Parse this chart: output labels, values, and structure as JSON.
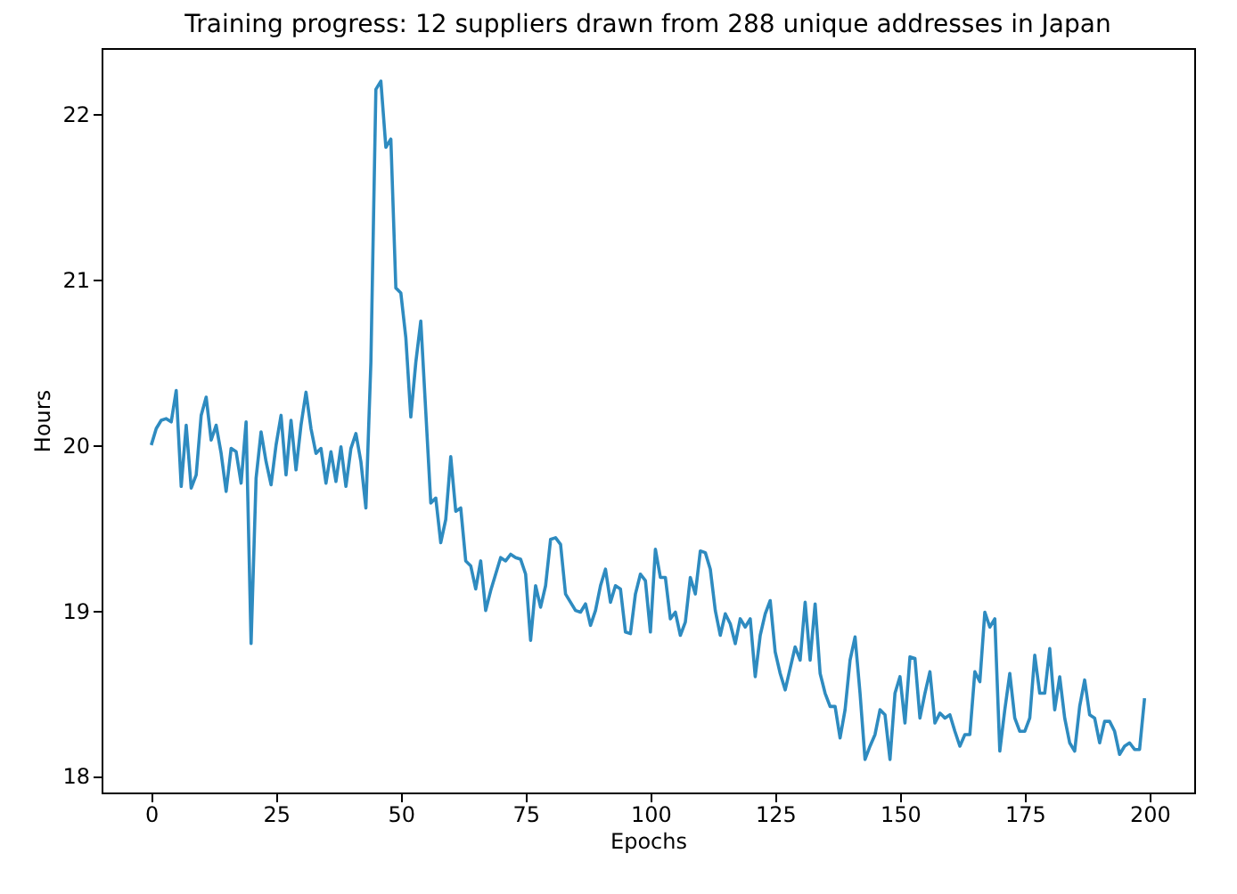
{
  "chart_data": {
    "type": "line",
    "title": "Training progress: 12 suppliers drawn from 288 unique addresses in Japan",
    "xlabel": "Epochs",
    "ylabel": "Hours",
    "x": [
      0,
      1,
      2,
      3,
      4,
      5,
      6,
      7,
      8,
      9,
      10,
      11,
      12,
      13,
      14,
      15,
      16,
      17,
      18,
      19,
      20,
      21,
      22,
      23,
      24,
      25,
      26,
      27,
      28,
      29,
      30,
      31,
      32,
      33,
      34,
      35,
      36,
      37,
      38,
      39,
      40,
      41,
      42,
      43,
      44,
      45,
      46,
      47,
      48,
      49,
      50,
      51,
      52,
      53,
      54,
      55,
      56,
      57,
      58,
      59,
      60,
      61,
      62,
      63,
      64,
      65,
      66,
      67,
      68,
      69,
      70,
      71,
      72,
      73,
      74,
      75,
      76,
      77,
      78,
      79,
      80,
      81,
      82,
      83,
      84,
      85,
      86,
      87,
      88,
      89,
      90,
      91,
      92,
      93,
      94,
      95,
      96,
      97,
      98,
      99,
      100,
      101,
      102,
      103,
      104,
      105,
      106,
      107,
      108,
      109,
      110,
      111,
      112,
      113,
      114,
      115,
      116,
      117,
      118,
      119,
      120,
      121,
      122,
      123,
      124,
      125,
      126,
      127,
      128,
      129,
      130,
      131,
      132,
      133,
      134,
      135,
      136,
      137,
      138,
      139,
      140,
      141,
      142,
      143,
      144,
      145,
      146,
      147,
      148,
      149,
      150,
      151,
      152,
      153,
      154,
      155,
      156,
      157,
      158,
      159,
      160,
      161,
      162,
      163,
      164,
      165,
      166,
      167,
      168,
      169,
      170,
      171,
      172,
      173,
      174,
      175,
      176,
      177,
      178,
      179,
      180,
      181,
      182,
      183,
      184,
      185,
      186,
      187,
      188,
      189,
      190,
      191,
      192,
      193,
      194,
      195,
      196,
      197,
      198,
      199
    ],
    "series": [
      {
        "color": "#2e8bc0",
        "values": [
          20.0,
          20.1,
          20.15,
          20.16,
          20.14,
          20.33,
          19.75,
          20.12,
          19.74,
          19.82,
          20.18,
          20.29,
          20.03,
          20.12,
          19.95,
          19.72,
          19.98,
          19.96,
          19.77,
          20.14,
          18.8,
          19.8,
          20.08,
          19.9,
          19.76,
          20.0,
          20.18,
          19.82,
          20.15,
          19.85,
          20.12,
          20.32,
          20.1,
          19.95,
          19.98,
          19.77,
          19.96,
          19.78,
          19.99,
          19.75,
          19.98,
          20.07,
          19.9,
          19.62,
          20.5,
          22.15,
          22.2,
          21.8,
          21.85,
          20.95,
          20.92,
          20.65,
          20.17,
          20.5,
          20.75,
          20.2,
          19.65,
          19.68,
          19.41,
          19.55,
          19.93,
          19.6,
          19.62,
          19.3,
          19.27,
          19.13,
          19.3,
          19.0,
          19.12,
          19.22,
          19.32,
          19.3,
          19.34,
          19.32,
          19.31,
          19.22,
          18.82,
          19.15,
          19.02,
          19.15,
          19.43,
          19.44,
          19.4,
          19.1,
          19.05,
          19.0,
          18.99,
          19.04,
          18.91,
          19.0,
          19.15,
          19.25,
          19.05,
          19.15,
          19.13,
          18.87,
          18.86,
          19.1,
          19.22,
          19.18,
          18.87,
          19.37,
          19.2,
          19.2,
          18.95,
          18.99,
          18.85,
          18.93,
          19.2,
          19.1,
          19.36,
          19.35,
          19.25,
          19.0,
          18.85,
          18.98,
          18.92,
          18.8,
          18.95,
          18.9,
          18.95,
          18.6,
          18.85,
          18.98,
          19.06,
          18.75,
          18.62,
          18.52,
          18.65,
          18.78,
          18.7,
          19.05,
          18.7,
          19.04,
          18.62,
          18.5,
          18.42,
          18.42,
          18.23,
          18.4,
          18.7,
          18.84,
          18.5,
          18.1,
          18.18,
          18.25,
          18.4,
          18.37,
          18.1,
          18.5,
          18.6,
          18.32,
          18.72,
          18.71,
          18.35,
          18.5,
          18.63,
          18.32,
          18.38,
          18.35,
          18.37,
          18.27,
          18.18,
          18.25,
          18.25,
          18.63,
          18.57,
          18.99,
          18.9,
          18.95,
          18.15,
          18.4,
          18.62,
          18.35,
          18.27,
          18.27,
          18.35,
          18.73,
          18.5,
          18.5,
          18.77,
          18.4,
          18.6,
          18.35,
          18.2,
          18.15,
          18.42,
          18.58,
          18.37,
          18.35,
          18.2,
          18.33,
          18.33,
          18.27,
          18.13,
          18.18,
          18.2,
          18.16,
          18.16,
          18.47
        ]
      }
    ],
    "xlim": [
      -9.95,
      208.95
    ],
    "xticks": [
      0,
      25,
      50,
      75,
      100,
      125,
      150,
      175,
      200
    ],
    "ylim": [
      17.9,
      22.4
    ],
    "yticks": [
      18,
      19,
      20,
      21,
      22
    ],
    "grid": false,
    "marker": "none",
    "line_style": "solid"
  }
}
